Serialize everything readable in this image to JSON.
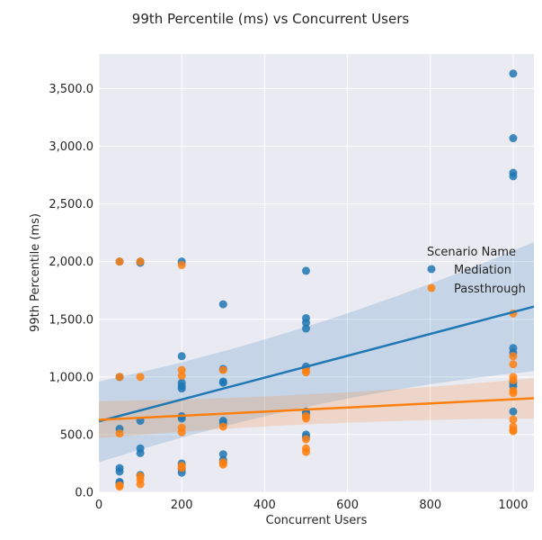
{
  "chart_data": {
    "type": "scatter",
    "title": "99th Percentile (ms) vs Concurrent Users",
    "xlabel": "Concurrent Users",
    "ylabel": "99th Percentile (ms)",
    "xlim": [
      0,
      1050
    ],
    "ylim": [
      0,
      3800
    ],
    "xticks": [
      0,
      200,
      400,
      600,
      800,
      1000
    ],
    "xtick_labels": [
      "0",
      "200",
      "400",
      "600",
      "800",
      "1000"
    ],
    "yticks": [
      0,
      500,
      1000,
      1500,
      2000,
      2500,
      3000,
      3500
    ],
    "ytick_labels": [
      "0.0",
      "500.0",
      "1,000.0",
      "1,500.0",
      "2,000.0",
      "2,500.0",
      "3,000.0",
      "3,500.0"
    ],
    "grid": true,
    "legend": {
      "title": "Scenario Name",
      "placement": "center-right"
    },
    "series": [
      {
        "name": "Mediation",
        "color": "#1f77b4",
        "x": [
          50,
          50,
          50,
          50,
          50,
          50,
          50,
          50,
          100,
          100,
          100,
          100,
          100,
          100,
          200,
          200,
          200,
          200,
          200,
          200,
          200,
          200,
          200,
          200,
          300,
          300,
          300,
          300,
          300,
          300,
          300,
          300,
          300,
          500,
          500,
          500,
          500,
          500,
          500,
          500,
          500,
          500,
          1000,
          1000,
          1000,
          1000,
          1000,
          1000,
          1000,
          1000,
          1000
        ],
        "y": [
          2000,
          1000,
          550,
          210,
          180,
          90,
          80,
          70,
          1990,
          2000,
          620,
          380,
          340,
          150,
          2000,
          1180,
          950,
          920,
          900,
          660,
          640,
          250,
          200,
          170,
          1630,
          1070,
          960,
          950,
          620,
          600,
          330,
          280,
          260,
          1920,
          1510,
          1470,
          1420,
          1090,
          700,
          680,
          500,
          480,
          3630,
          3070,
          2770,
          2740,
          1250,
          1210,
          950,
          920,
          700
        ],
        "trend": {
          "x": [
            0,
            1050
          ],
          "y": [
            615,
            1610
          ]
        },
        "ci_lower": [
          260,
          1050
        ],
        "ci_upper": [
          960,
          2170
        ]
      },
      {
        "name": "Passthrough",
        "color": "#ff7f0e",
        "x": [
          50,
          50,
          50,
          50,
          50,
          100,
          100,
          100,
          100,
          100,
          200,
          200,
          200,
          200,
          200,
          200,
          200,
          300,
          300,
          300,
          300,
          500,
          500,
          500,
          500,
          500,
          500,
          500,
          1000,
          1000,
          1000,
          1000,
          1000,
          1000,
          1000,
          1000,
          1000,
          1000,
          1000
        ],
        "y": [
          2000,
          1000,
          510,
          60,
          50,
          2000,
          1000,
          140,
          110,
          70,
          1970,
          1060,
          1010,
          560,
          520,
          230,
          210,
          1060,
          570,
          260,
          240,
          1060,
          1040,
          660,
          640,
          460,
          380,
          350,
          1550,
          1180,
          1110,
          1000,
          970,
          880,
          860,
          630,
          570,
          540,
          530
        ],
        "trend": {
          "x": [
            0,
            1050
          ],
          "y": [
            628,
            815
          ]
        },
        "ci_lower": [
          470,
          640
        ],
        "ci_upper": [
          790,
          990
        ]
      }
    ]
  }
}
